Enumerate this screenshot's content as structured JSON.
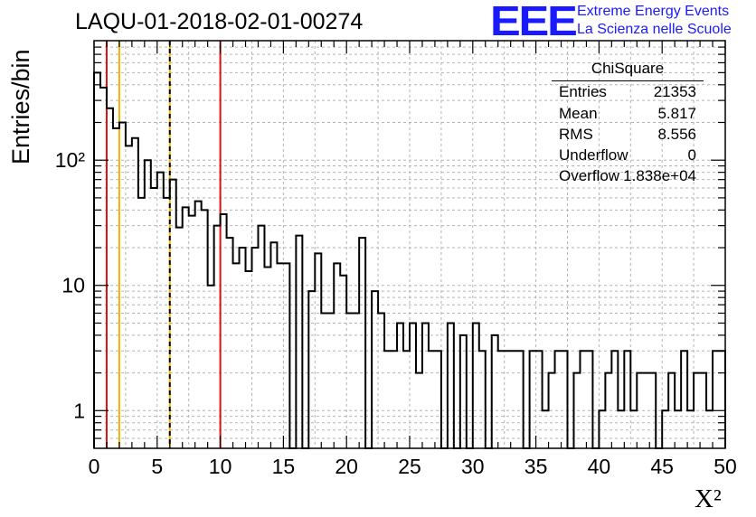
{
  "header": {
    "title": "LAQU-01-2018-02-01-00274",
    "logo_mark": "EEE",
    "logo_line1": "Extreme Energy Events",
    "logo_line2": "La Scienza nelle Scuole"
  },
  "stats_box": {
    "title": "ChiSquare",
    "rows": [
      {
        "key": "Entries",
        "value": "21353"
      },
      {
        "key": "Mean",
        "value": "5.817"
      },
      {
        "key": "RMS",
        "value": "8.556"
      },
      {
        "key": "Underflow",
        "value": "0"
      },
      {
        "key": "Overflow",
        "value": "1.838e+04"
      }
    ]
  },
  "colors": {
    "histogram": "#000000",
    "grid": "#b3b3b3",
    "red_marker": "#dd1111",
    "orange_marker": "#f0b400",
    "logo": "#1a1aff"
  },
  "chart_data": {
    "type": "bar",
    "subtype": "step-histogram",
    "title": "LAQU-01-2018-02-01-00274",
    "xlabel": "X²",
    "ylabel": "Entries/bin",
    "xlim": [
      0,
      50
    ],
    "ylim": [
      0.5,
      900
    ],
    "yscale": "log",
    "grid": true,
    "legend": "top-right",
    "bin_width": 0.5,
    "x_ticks": [
      0,
      5,
      10,
      15,
      20,
      25,
      30,
      35,
      40,
      45,
      50
    ],
    "x_tick_labels": [
      "0",
      "5",
      "10",
      "15",
      "20",
      "25",
      "30",
      "35",
      "40",
      "45",
      "50"
    ],
    "y_ticks": [
      1,
      10,
      100
    ],
    "y_tick_labels": [
      "1",
      "10",
      "10²"
    ],
    "vertical_lines": [
      {
        "x": 1,
        "color": "#dd1111",
        "style": "solid"
      },
      {
        "x": 2,
        "color": "#f0b400",
        "style": "solid"
      },
      {
        "x": 6,
        "color": "#f0b400",
        "style": "solid"
      },
      {
        "x": 6,
        "color": "#000000",
        "style": "dashed"
      },
      {
        "x": 10,
        "color": "#dd1111",
        "style": "solid"
      }
    ],
    "values": [
      500,
      380,
      260,
      180,
      200,
      130,
      150,
      50,
      100,
      60,
      80,
      50,
      70,
      29,
      42,
      36,
      47,
      40,
      10,
      30,
      37,
      24,
      15,
      20,
      13,
      20,
      30,
      14,
      22,
      15,
      15,
      0,
      25,
      0,
      9,
      18,
      6,
      6,
      15,
      12,
      6,
      6,
      24,
      0,
      9,
      6,
      3,
      3,
      5,
      3,
      5,
      2,
      5,
      3,
      3,
      0,
      5,
      0,
      4,
      0,
      5,
      3,
      0,
      4,
      3,
      3,
      3,
      3,
      0,
      3,
      3,
      1,
      2,
      3,
      3,
      0,
      2,
      3,
      3,
      0,
      1,
      2,
      3,
      1,
      3,
      1,
      2,
      2,
      2,
      0,
      1,
      2,
      1,
      3,
      1,
      2,
      2,
      1,
      3,
      3
    ]
  }
}
